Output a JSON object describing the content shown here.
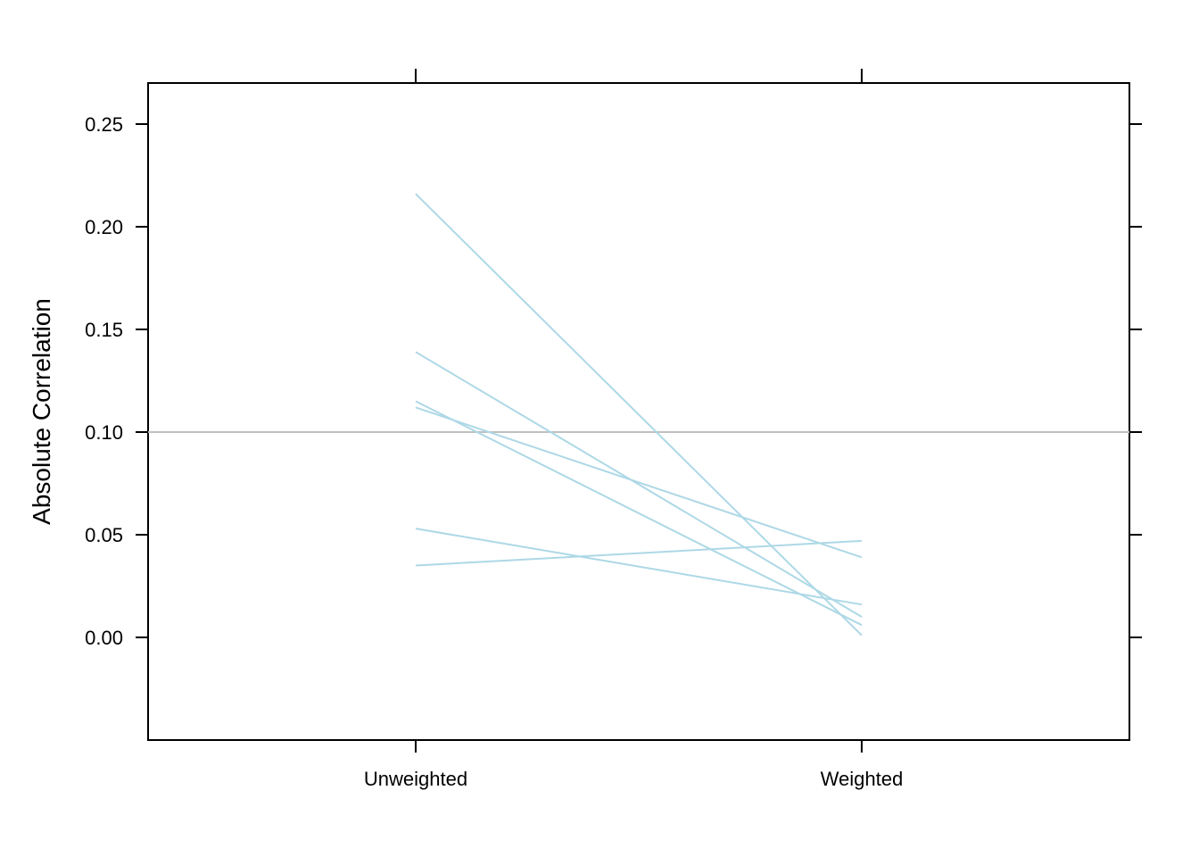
{
  "chart_data": {
    "type": "line",
    "title": "",
    "xlabel": "",
    "ylabel": "Absolute Correlation",
    "categories": [
      "Unweighted",
      "Weighted"
    ],
    "ylim": [
      -0.05,
      0.27
    ],
    "yticks": [
      "0.00",
      "0.05",
      "0.10",
      "0.15",
      "0.20",
      "0.25"
    ],
    "reference_line": 0.1,
    "grid": false,
    "legend": "none",
    "series": [
      {
        "values": [
          0.216,
          0.001
        ]
      },
      {
        "values": [
          0.139,
          0.01
        ]
      },
      {
        "values": [
          0.115,
          0.006
        ]
      },
      {
        "values": [
          0.112,
          0.039
        ]
      },
      {
        "values": [
          0.053,
          0.016
        ]
      },
      {
        "values": [
          0.035,
          0.047
        ]
      }
    ],
    "colors": {
      "series": "#add8e6",
      "reference_line": "#c0c0c0",
      "axes": "#000000"
    }
  }
}
